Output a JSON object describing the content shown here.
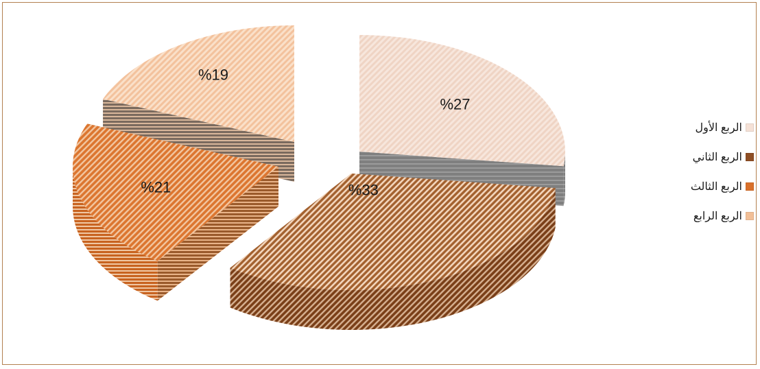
{
  "chart_data": {
    "type": "pie",
    "categories": [
      "الربع الأول",
      "الربع الثاني",
      "الربع الثالث",
      "الربع الرابع"
    ],
    "values": [
      27,
      33,
      21,
      19
    ],
    "labels": [
      "%27",
      "%33",
      "%21",
      "%19"
    ],
    "colors": [
      "#f5e1d6",
      "#8e4e24",
      "#d9702a",
      "#f2bf97"
    ],
    "legend_position": "right",
    "style": "3d-exploded"
  }
}
